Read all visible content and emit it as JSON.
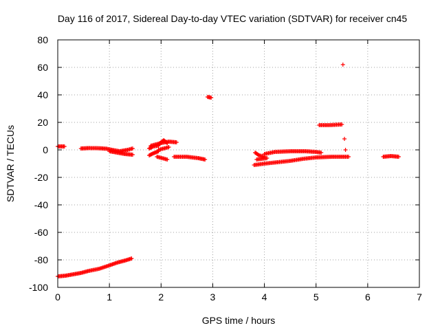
{
  "chart_data": {
    "type": "scatter",
    "title": "Day 116 of 2017, Sidereal Day-to-day VTEC variation (SDTVAR) for receiver cn45",
    "xlabel": "GPS time / hours",
    "ylabel": "SDTVAR / TECUs",
    "xlim": [
      0,
      7
    ],
    "ylim": [
      -100,
      80
    ],
    "xticks": [
      0,
      1,
      2,
      3,
      4,
      5,
      6,
      7
    ],
    "yticks": [
      -100,
      -80,
      -60,
      -40,
      -20,
      0,
      20,
      40,
      60,
      80
    ],
    "grid": true,
    "marker": "+",
    "color": "#ff0000",
    "segments": [
      {
        "name": "s1",
        "points": [
          [
            0.0,
            2.5
          ],
          [
            0.13,
            2.5
          ]
        ]
      },
      {
        "name": "s2",
        "points": [
          [
            0.45,
            1
          ],
          [
            0.6,
            1.3
          ],
          [
            0.8,
            1.2
          ],
          [
            0.95,
            0.8
          ],
          [
            1.05,
            0
          ]
        ]
      },
      {
        "name": "s3",
        "points": [
          [
            1.0,
            -1
          ],
          [
            1.15,
            -2
          ],
          [
            1.3,
            -3
          ],
          [
            1.45,
            -3.5
          ]
        ]
      },
      {
        "name": "s4",
        "points": [
          [
            1.05,
            0
          ],
          [
            1.2,
            -1
          ],
          [
            1.35,
            0
          ],
          [
            1.45,
            1
          ]
        ]
      },
      {
        "name": "s5",
        "points": [
          [
            0.0,
            -92
          ],
          [
            0.15,
            -91.5
          ],
          [
            0.3,
            -90.5
          ],
          [
            0.45,
            -89.5
          ],
          [
            0.6,
            -88
          ],
          [
            0.8,
            -86.5
          ],
          [
            1.0,
            -84
          ],
          [
            1.15,
            -82
          ],
          [
            1.3,
            -80.5
          ],
          [
            1.43,
            -79
          ]
        ]
      },
      {
        "name": "s6",
        "points": [
          [
            1.77,
            1
          ],
          [
            1.85,
            2.5
          ],
          [
            1.95,
            3
          ]
        ]
      },
      {
        "name": "s7",
        "points": [
          [
            1.77,
            -4
          ],
          [
            1.85,
            -2.5
          ],
          [
            1.95,
            -1
          ]
        ]
      },
      {
        "name": "s8",
        "points": [
          [
            1.8,
            3
          ],
          [
            2.0,
            5
          ],
          [
            2.15,
            6
          ],
          [
            2.3,
            5.5
          ]
        ]
      },
      {
        "name": "s9",
        "points": [
          [
            1.95,
            4
          ],
          [
            2.05,
            7
          ],
          [
            2.12,
            5
          ]
        ]
      },
      {
        "name": "s10",
        "points": [
          [
            1.95,
            0
          ],
          [
            2.05,
            1
          ],
          [
            2.15,
            2
          ]
        ]
      },
      {
        "name": "s11",
        "points": [
          [
            1.92,
            -5
          ],
          [
            2.02,
            -6
          ],
          [
            2.12,
            -7
          ]
        ]
      },
      {
        "name": "s12",
        "points": [
          [
            2.25,
            -5
          ],
          [
            2.5,
            -5
          ],
          [
            2.6,
            -5.5
          ],
          [
            2.72,
            -6
          ],
          [
            2.85,
            -7
          ]
        ]
      },
      {
        "name": "s13",
        "points": [
          [
            2.9,
            38.5
          ],
          [
            2.97,
            38
          ]
        ]
      },
      {
        "name": "s14",
        "points": [
          [
            3.8,
            -11
          ],
          [
            4.0,
            -10
          ],
          [
            4.25,
            -9
          ],
          [
            4.5,
            -8
          ],
          [
            4.75,
            -6.5
          ],
          [
            5.0,
            -5.5
          ],
          [
            5.3,
            -5
          ],
          [
            5.63,
            -5
          ]
        ]
      },
      {
        "name": "s15",
        "points": [
          [
            3.82,
            -2
          ],
          [
            3.9,
            -4
          ],
          [
            4.0,
            -5
          ]
        ]
      },
      {
        "name": "s16",
        "points": [
          [
            3.85,
            -7
          ],
          [
            3.95,
            -6.5
          ],
          [
            4.05,
            -6
          ]
        ]
      },
      {
        "name": "s17",
        "points": [
          [
            4.0,
            -3
          ],
          [
            4.2,
            -1.5
          ],
          [
            4.5,
            -1
          ],
          [
            4.8,
            -1
          ],
          [
            5.0,
            -1.5
          ],
          [
            5.1,
            -2
          ]
        ]
      },
      {
        "name": "s18",
        "points": [
          [
            5.06,
            18
          ],
          [
            5.25,
            18
          ],
          [
            5.5,
            18.5
          ]
        ]
      },
      {
        "name": "s19",
        "points": [
          [
            5.52,
            62
          ]
        ]
      },
      {
        "name": "s20",
        "points": [
          [
            5.55,
            8
          ]
        ]
      },
      {
        "name": "s21",
        "points": [
          [
            5.57,
            0
          ]
        ]
      },
      {
        "name": "s22",
        "points": [
          [
            6.3,
            -5
          ],
          [
            6.45,
            -4.5
          ],
          [
            6.6,
            -5
          ]
        ]
      }
    ]
  }
}
